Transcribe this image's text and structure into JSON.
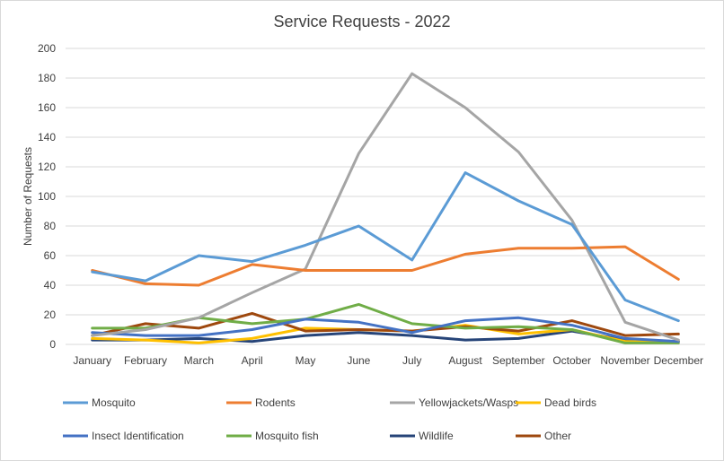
{
  "chart_data": {
    "type": "line",
    "title": "Service Requests - 2022",
    "xlabel": "",
    "ylabel": "Number of Requests",
    "ylim": [
      0,
      200
    ],
    "yticks": [
      0,
      20,
      40,
      60,
      80,
      100,
      120,
      140,
      160,
      180,
      200
    ],
    "grid": true,
    "legend": "bottom",
    "categories": [
      "January",
      "February",
      "March",
      "April",
      "May",
      "June",
      "July",
      "August",
      "September",
      "October",
      "November",
      "December"
    ],
    "series": [
      {
        "name": "Mosquito",
        "color": "#5b9bd5",
        "values": [
          49,
          43,
          60,
          56,
          67,
          80,
          57,
          116,
          97,
          81,
          30,
          16
        ]
      },
      {
        "name": "Rodents",
        "color": "#ed7d31",
        "values": [
          50,
          41,
          40,
          54,
          50,
          50,
          50,
          61,
          65,
          65,
          66,
          44
        ]
      },
      {
        "name": "Yellowjackets/Wasps",
        "color": "#a5a5a5",
        "values": [
          6,
          10,
          18,
          35,
          51,
          129,
          183,
          160,
          130,
          84,
          15,
          3
        ]
      },
      {
        "name": "Dead birds",
        "color": "#ffc000",
        "values": [
          4,
          3,
          1,
          4,
          11,
          10,
          9,
          13,
          7,
          10,
          2,
          2
        ]
      },
      {
        "name": "Insect Identification",
        "color": "#4472c4",
        "values": [
          8,
          6,
          6,
          10,
          17,
          15,
          8,
          16,
          18,
          13,
          4,
          2
        ]
      },
      {
        "name": "Mosquito fish",
        "color": "#70ad47",
        "values": [
          11,
          11,
          18,
          14,
          17,
          27,
          14,
          11,
          12,
          10,
          1,
          1
        ]
      },
      {
        "name": "Wildlife",
        "color": "#264478",
        "values": [
          3,
          3,
          4,
          2,
          6,
          8,
          6,
          3,
          4,
          9,
          3,
          2
        ]
      },
      {
        "name": "Other",
        "color": "#9e480e",
        "values": [
          6,
          14,
          11,
          21,
          9,
          10,
          9,
          12,
          9,
          16,
          6,
          7
        ]
      }
    ]
  }
}
